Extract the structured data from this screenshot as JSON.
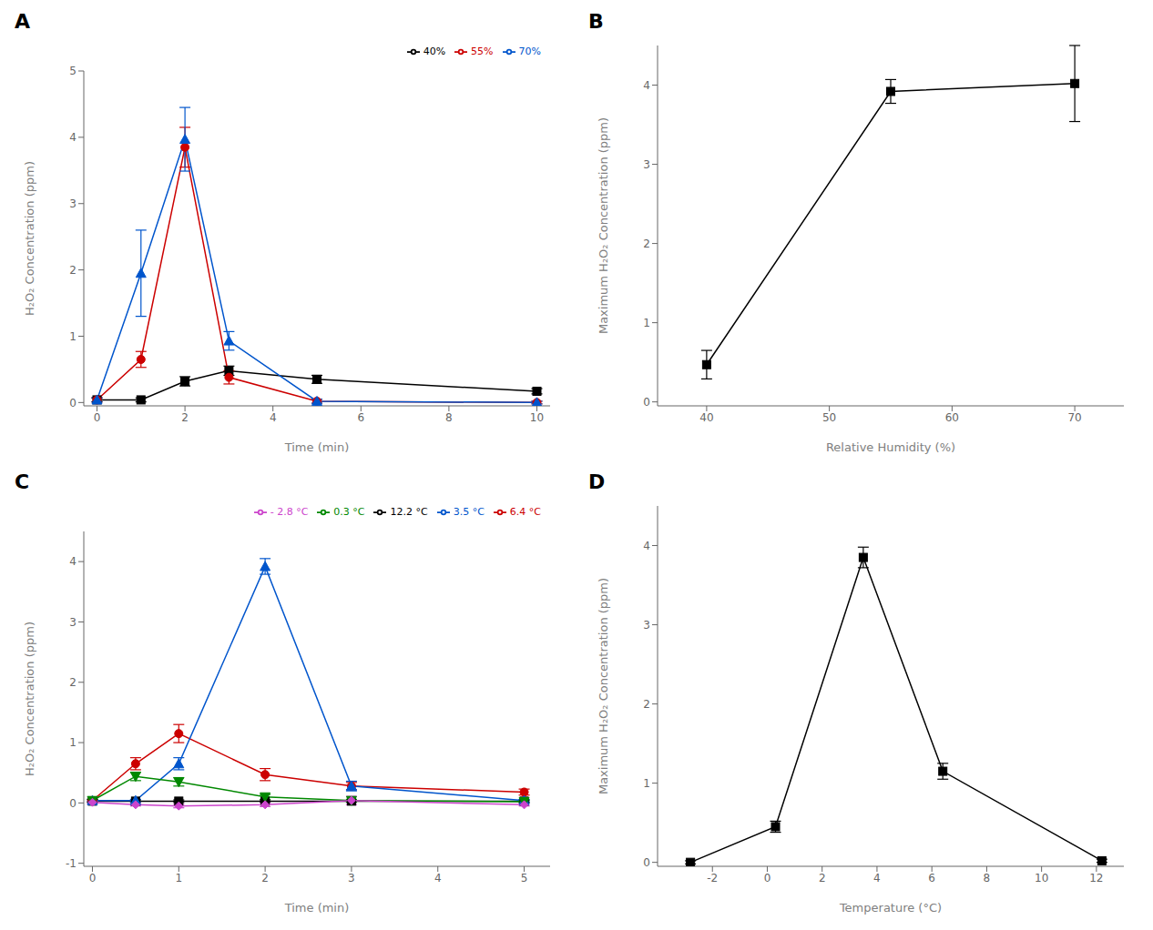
{
  "chart_data": [
    {
      "type": "line",
      "title": "A",
      "x_label": "Time (min)",
      "y_label": "H₂O₂ Concentration (ppm)",
      "xlim": [
        -0.3,
        10.3
      ],
      "ylim": [
        -0.05,
        5
      ],
      "xticks": [
        0,
        2,
        4,
        6,
        8,
        10
      ],
      "yticks": [
        0,
        1,
        2,
        3,
        4,
        5
      ],
      "grid": false,
      "legend": "upper right",
      "series": [
        {
          "name": "40%",
          "color": "#000000",
          "marker": "square",
          "x": [
            0,
            1,
            2,
            3,
            5,
            10
          ],
          "values": [
            0.04,
            0.04,
            0.32,
            0.48,
            0.35,
            0.17
          ],
          "errors": [
            0.03,
            0.03,
            0.07,
            0.07,
            0.06,
            0.04
          ]
        },
        {
          "name": "55%",
          "color": "#cc0000",
          "marker": "circle",
          "x": [
            0,
            1,
            2,
            3,
            5,
            10
          ],
          "values": [
            0.04,
            0.65,
            3.85,
            0.38,
            0.02,
            0.0
          ],
          "errors": [
            0.03,
            0.12,
            0.3,
            0.1,
            0.03,
            0.02
          ]
        },
        {
          "name": "70%",
          "color": "#0055cc",
          "marker": "triangle-up",
          "x": [
            0,
            1,
            2,
            3,
            5,
            10
          ],
          "values": [
            0.04,
            1.95,
            3.97,
            0.93,
            0.02,
            0.0
          ],
          "errors": [
            0.03,
            0.65,
            0.48,
            0.14,
            0.03,
            0.02
          ]
        }
      ]
    },
    {
      "type": "line",
      "title": "B",
      "x_label": "Relative Humidity (%)",
      "y_label": "Maximum H₂O₂ Concentration (ppm)",
      "xlim": [
        36,
        74
      ],
      "ylim": [
        -0.05,
        4.5
      ],
      "xticks": [
        40,
        50,
        60,
        70
      ],
      "yticks": [
        0,
        1,
        2,
        3,
        4
      ],
      "grid": false,
      "series": [
        {
          "color": "#000000",
          "marker": "square",
          "x": [
            40,
            55,
            70
          ],
          "values": [
            0.47,
            3.92,
            4.02
          ],
          "errors": [
            0.18,
            0.15,
            0.48
          ]
        }
      ]
    },
    {
      "type": "line",
      "title": "C",
      "x_label": "Time (min)",
      "y_label": "H₂O₂ Concentration (ppm)",
      "xlim": [
        -0.1,
        5.3
      ],
      "ylim": [
        -1.05,
        4.5
      ],
      "xticks": [
        0,
        1,
        2,
        3,
        4,
        5
      ],
      "yticks": [
        -1,
        0,
        1,
        2,
        3,
        4
      ],
      "grid": false,
      "legend": "upper right",
      "series": [
        {
          "name": "12.2 °C",
          "color": "#000000",
          "marker": "square",
          "x": [
            0,
            0.5,
            1,
            2,
            3,
            5
          ],
          "values": [
            0.03,
            0.03,
            0.03,
            0.03,
            0.03,
            0.03
          ],
          "errors": [
            0.02,
            0.02,
            0.02,
            0.02,
            0.02,
            0.02
          ]
        },
        {
          "name": "6.4 °C",
          "color": "#cc0000",
          "marker": "circle",
          "x": [
            0,
            0.5,
            1,
            2,
            3,
            5
          ],
          "values": [
            0.04,
            0.65,
            1.15,
            0.47,
            0.28,
            0.18
          ],
          "errors": [
            0.02,
            0.1,
            0.15,
            0.1,
            0.06,
            0.05
          ]
        },
        {
          "name": "3.5 °C",
          "color": "#0055cc",
          "marker": "triangle-up",
          "x": [
            0,
            0.5,
            1,
            2,
            3,
            5
          ],
          "values": [
            0.04,
            0.04,
            0.65,
            3.92,
            0.28,
            0.04
          ],
          "errors": [
            0.02,
            0.02,
            0.1,
            0.13,
            0.08,
            0.02
          ]
        },
        {
          "name": "0.3 °C",
          "color": "#008800",
          "marker": "triangle-down",
          "x": [
            0,
            0.5,
            1,
            2,
            3,
            5
          ],
          "values": [
            0.04,
            0.44,
            0.35,
            0.1,
            0.04,
            0.02
          ],
          "errors": [
            0.02,
            0.07,
            0.07,
            0.04,
            0.02,
            0.02
          ]
        },
        {
          "name": "- 2.8 °C",
          "color": "#cc44cc",
          "marker": "diamond",
          "x": [
            0,
            0.5,
            1,
            2,
            3,
            5
          ],
          "values": [
            0.01,
            -0.03,
            -0.05,
            -0.03,
            0.04,
            -0.03
          ],
          "errors": [
            0.02,
            0.02,
            0.03,
            0.03,
            0.07,
            0.02
          ]
        }
      ]
    },
    {
      "type": "line",
      "title": "D",
      "x_label": "Temperature (°C)",
      "y_label": "Maximum H₂O₂ Concentration (ppm)",
      "xlim": [
        -4,
        13
      ],
      "ylim": [
        -0.05,
        4.5
      ],
      "xticks": [
        -2,
        0,
        2,
        4,
        6,
        8,
        10,
        12
      ],
      "yticks": [
        0,
        1,
        2,
        3,
        4
      ],
      "grid": false,
      "series": [
        {
          "color": "#000000",
          "marker": "square",
          "x": [
            -2.8,
            0.3,
            3.5,
            6.4,
            12.2
          ],
          "values": [
            0.0,
            0.45,
            3.85,
            1.15,
            0.02
          ],
          "errors": [
            0.02,
            0.07,
            0.13,
            0.1,
            0.02
          ]
        }
      ]
    }
  ]
}
